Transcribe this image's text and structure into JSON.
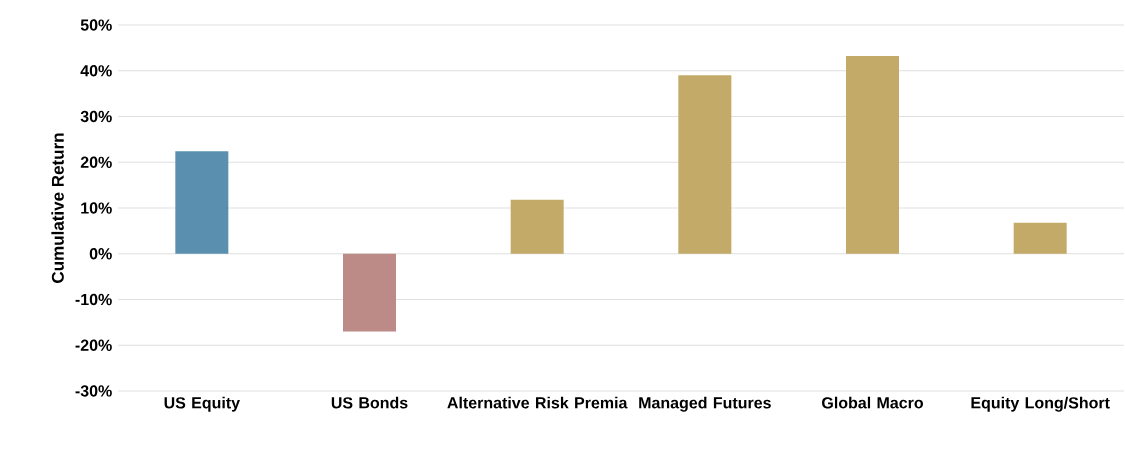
{
  "chart_data": {
    "type": "bar",
    "ylabel": "Cumulative Return",
    "categories": [
      "US Equity",
      "US Bonds",
      "Alternative Risk Premia",
      "Managed Futures",
      "Global Macro",
      "Equity Long/Short"
    ],
    "values": [
      22.4,
      -17,
      11.8,
      39,
      43.2,
      6.8
    ],
    "colors": [
      "#5a8fb0",
      "#bc8a87",
      "#c4aa68",
      "#c4aa68",
      "#c4aa68",
      "#c4aa68"
    ],
    "ylim": [
      -30,
      50
    ],
    "yticks": [
      {
        "value": -30,
        "label": "-30%"
      },
      {
        "value": -20,
        "label": "-20%"
      },
      {
        "value": -10,
        "label": "-10%"
      },
      {
        "value": 0,
        "label": "0%"
      },
      {
        "value": 10,
        "label": "10%"
      },
      {
        "value": 20,
        "label": "20%"
      },
      {
        "value": 30,
        "label": "30%"
      },
      {
        "value": 40,
        "label": "40%"
      },
      {
        "value": 50,
        "label": "50%"
      }
    ],
    "grid": "y"
  }
}
